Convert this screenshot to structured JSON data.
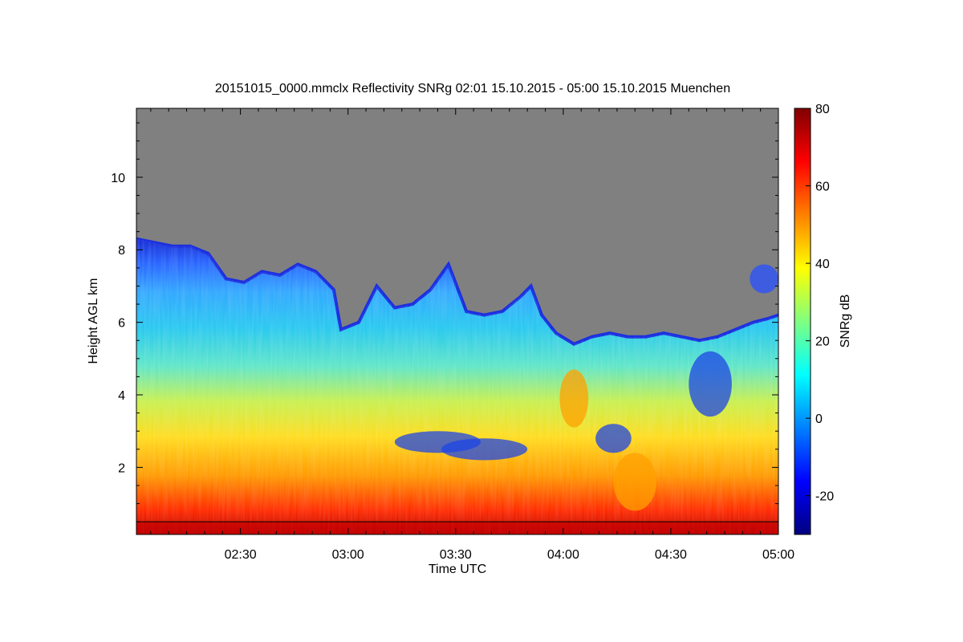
{
  "chart_data": {
    "type": "heatmap",
    "title": "20151015_0000.mmclx Reflectivity SNRg   02:01 15.10.2015 - 05:00 15.10.2015 Muenchen",
    "xlabel": "Time UTC",
    "ylabel": "Height AGL km",
    "x_ticks": [
      "02:30",
      "03:00",
      "03:30",
      "04:00",
      "04:30",
      "05:00"
    ],
    "x_range_minutes_utc": [
      121,
      300
    ],
    "x_tick_minutes_utc": [
      150,
      180,
      210,
      240,
      270,
      300
    ],
    "y_ticks": [
      "2",
      "4",
      "6",
      "8",
      "10"
    ],
    "y_tick_values": [
      2,
      4,
      6,
      8,
      10
    ],
    "y_range_km": [
      0.15,
      11.9
    ],
    "colorbar": {
      "label": "SNRg dB",
      "range": [
        -30,
        80
      ],
      "ticks": [
        "80",
        "60",
        "40",
        "20",
        "0",
        "-20"
      ],
      "tick_values": [
        80,
        60,
        40,
        20,
        0,
        -20
      ]
    },
    "no_signal_color": "#808080",
    "reference_line_height_km": 0.5,
    "cloud_top_profile": [
      {
        "time_min": 121,
        "top_km": 8.3
      },
      {
        "time_min": 126,
        "top_km": 8.2
      },
      {
        "time_min": 131,
        "top_km": 8.1
      },
      {
        "time_min": 136,
        "top_km": 8.1
      },
      {
        "time_min": 141,
        "top_km": 7.9
      },
      {
        "time_min": 146,
        "top_km": 7.2
      },
      {
        "time_min": 151,
        "top_km": 7.1
      },
      {
        "time_min": 156,
        "top_km": 7.4
      },
      {
        "time_min": 161,
        "top_km": 7.3
      },
      {
        "time_min": 166,
        "top_km": 7.6
      },
      {
        "time_min": 171,
        "top_km": 7.4
      },
      {
        "time_min": 176,
        "top_km": 6.9
      },
      {
        "time_min": 178,
        "top_km": 5.8
      },
      {
        "time_min": 183,
        "top_km": 6.0
      },
      {
        "time_min": 188,
        "top_km": 7.0
      },
      {
        "time_min": 193,
        "top_km": 6.4
      },
      {
        "time_min": 198,
        "top_km": 6.5
      },
      {
        "time_min": 203,
        "top_km": 6.9
      },
      {
        "time_min": 208,
        "top_km": 7.6
      },
      {
        "time_min": 213,
        "top_km": 6.3
      },
      {
        "time_min": 218,
        "top_km": 6.2
      },
      {
        "time_min": 223,
        "top_km": 6.3
      },
      {
        "time_min": 228,
        "top_km": 6.7
      },
      {
        "time_min": 231,
        "top_km": 7.0
      },
      {
        "time_min": 234,
        "top_km": 6.2
      },
      {
        "time_min": 238,
        "top_km": 5.7
      },
      {
        "time_min": 243,
        "top_km": 5.4
      },
      {
        "time_min": 248,
        "top_km": 5.6
      },
      {
        "time_min": 253,
        "top_km": 5.7
      },
      {
        "time_min": 258,
        "top_km": 5.6
      },
      {
        "time_min": 263,
        "top_km": 5.6
      },
      {
        "time_min": 268,
        "top_km": 5.7
      },
      {
        "time_min": 273,
        "top_km": 5.6
      },
      {
        "time_min": 278,
        "top_km": 5.5
      },
      {
        "time_min": 283,
        "top_km": 5.6
      },
      {
        "time_min": 288,
        "top_km": 5.8
      },
      {
        "time_min": 293,
        "top_km": 6.0
      },
      {
        "time_min": 297,
        "top_km": 6.1
      },
      {
        "time_min": 300,
        "top_km": 6.2
      }
    ],
    "low_snr_patches": [
      {
        "time_min": 205,
        "height_km": 2.7,
        "dt": 12,
        "dh": 0.3
      },
      {
        "time_min": 218,
        "height_km": 2.5,
        "dt": 12,
        "dh": 0.3
      },
      {
        "time_min": 254,
        "height_km": 2.8,
        "dt": 5,
        "dh": 0.4
      },
      {
        "time_min": 281,
        "height_km": 4.3,
        "dt": 6,
        "dh": 0.9
      }
    ],
    "high_snr_patches": [
      {
        "time_min": 243,
        "height_km": 3.9,
        "dt": 4,
        "dh": 0.8
      },
      {
        "time_min": 260,
        "height_km": 1.6,
        "dt": 6,
        "dh": 0.8
      }
    ],
    "isolated_echoes": [
      {
        "time_min": 296,
        "height_km": 7.2,
        "dt": 4,
        "dh": 0.4
      }
    ]
  }
}
